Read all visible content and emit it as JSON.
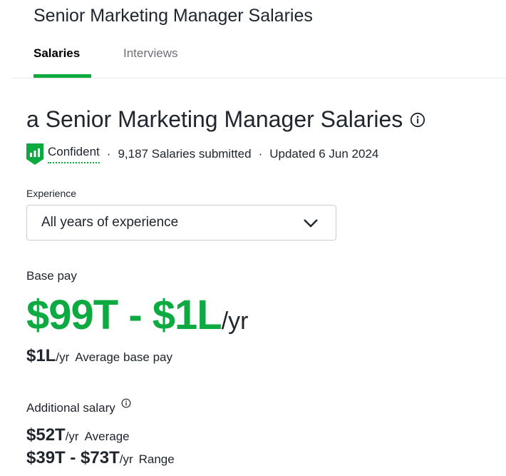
{
  "page_title": "Senior Marketing Manager Salaries",
  "tabs": [
    {
      "label": "Salaries",
      "active": true
    },
    {
      "label": "Interviews",
      "active": false
    }
  ],
  "heading": "a Senior Marketing Manager Salaries",
  "meta": {
    "confidence": "Confident",
    "sep": "·",
    "submitted": "9,187 Salaries submitted",
    "updated": "Updated 6 Jun 2024"
  },
  "experience": {
    "label": "Experience",
    "selected": "All years of experience"
  },
  "base_pay": {
    "label": "Base pay",
    "range": "$99T - $1L",
    "range_unit": "/yr",
    "average_value": "$1L",
    "average_unit": "/yr",
    "average_label": "Average base pay"
  },
  "additional": {
    "label": "Additional salary",
    "average_value": "$52T",
    "average_unit": "/yr",
    "average_label": "Average",
    "range_value": "$39T - $73T",
    "range_unit": "/yr",
    "range_label": "Range"
  },
  "colors": {
    "accent": "#0caa41",
    "text": "#20262e",
    "muted": "#6b7077"
  },
  "icons": [
    "info-icon",
    "confidence-badge-icon",
    "chevron-down-icon"
  ]
}
